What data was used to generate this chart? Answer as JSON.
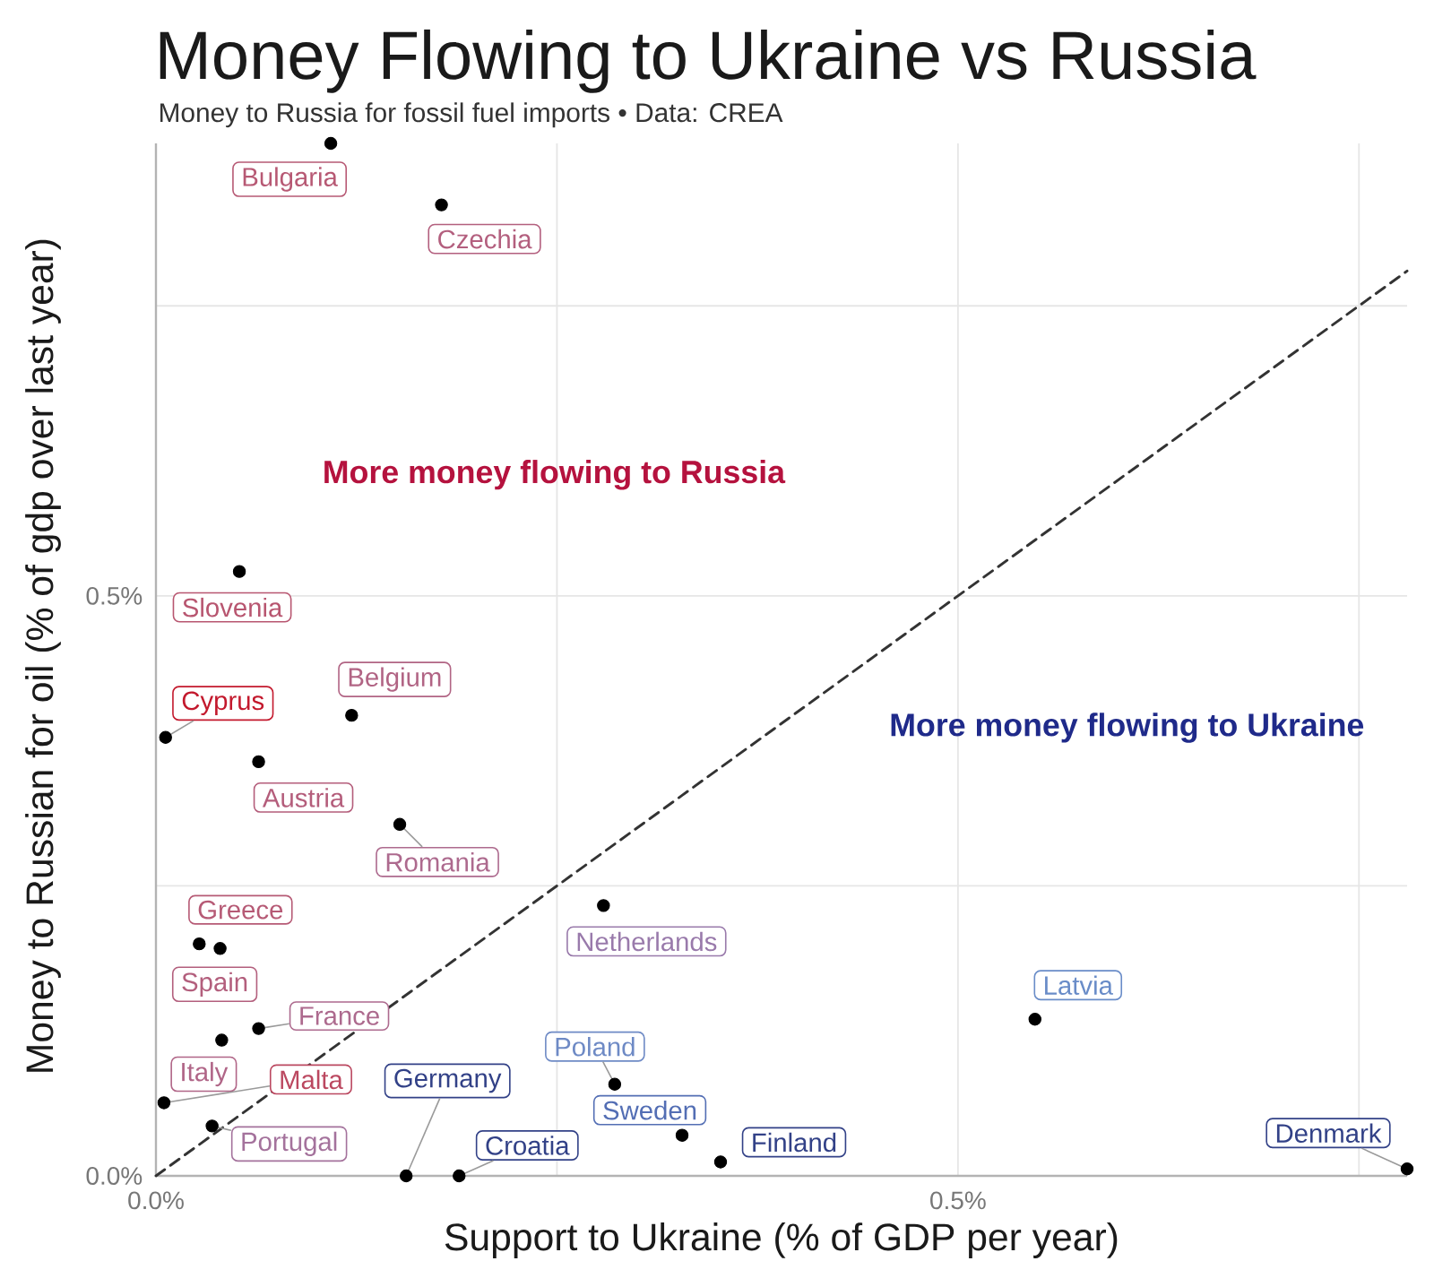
{
  "chart_data": {
    "type": "scatter",
    "title": "Money Flowing to Ukraine vs Russia",
    "subtitle": "Money to Russia for fossil fuel imports • Data: CREA",
    "xlabel": "Support to Ukraine (% of GDP per year)",
    "ylabel": "Money to Russian for oil (% of gdp over last year)",
    "xlim": [
      0,
      0.78
    ],
    "ylim": [
      0,
      0.89
    ],
    "xticks": [
      {
        "value": 0,
        "label": "0.0%"
      },
      {
        "value": 0.25,
        "label": null
      },
      {
        "value": 0.5,
        "label": "0.5%"
      },
      {
        "value": 0.75,
        "label": null
      }
    ],
    "yticks": [
      {
        "value": 0,
        "label": "0.0%"
      },
      {
        "value": 0.25,
        "label": null
      },
      {
        "value": 0.5,
        "label": "0.5%"
      },
      {
        "value": 0.75,
        "label": null
      }
    ],
    "grid": true,
    "series": [
      {
        "type": "line",
        "color": "#333333",
        "line_style": "dashed",
        "x": [
          0,
          0.78
        ],
        "values": [
          0,
          0.78
        ]
      },
      {
        "type": "scatter",
        "color": "#000000",
        "marker": "circle",
        "x": [
          0.109,
          0.178,
          0.052,
          0.006,
          0.122,
          0.064,
          0.152,
          0.027,
          0.04,
          0.064,
          0.041,
          0.005,
          0.035,
          0.156,
          0.189,
          0.279,
          0.286,
          0.328,
          0.352,
          0.548,
          0.78
        ],
        "values": [
          0.89,
          0.837,
          0.521,
          0.378,
          0.397,
          0.357,
          0.303,
          0.2,
          0.196,
          0.127,
          0.117,
          0.063,
          0.043,
          0,
          0,
          0.233,
          0.079,
          0.035,
          0.012,
          0.135,
          0.006
        ]
      }
    ],
    "annotations": [
      "More money flowing to Russia",
      "More money flowing to Ukraine",
      {
        "text": "Bulgaria",
        "x": 0.109,
        "y": 0.89
      },
      {
        "text": "Czechia",
        "x": 0.178,
        "y": 0.837
      },
      {
        "text": "Slovenia",
        "x": 0.052,
        "y": 0.521
      },
      {
        "text": "Cyprus",
        "x": 0.006,
        "y": 0.378
      },
      {
        "text": "Belgium",
        "x": 0.122,
        "y": 0.397
      },
      {
        "text": "Austria",
        "x": 0.064,
        "y": 0.357
      },
      {
        "text": "Romania",
        "x": 0.152,
        "y": 0.303
      },
      {
        "text": "Greece",
        "x": 0.027,
        "y": 0.2
      },
      {
        "text": "Spain",
        "x": 0.04,
        "y": 0.196
      },
      {
        "text": "France",
        "x": 0.064,
        "y": 0.127
      },
      {
        "text": "Italy",
        "x": 0.041,
        "y": 0.117
      },
      {
        "text": "Malta",
        "x": 0.005,
        "y": 0.063
      },
      {
        "text": "Portugal",
        "x": 0.035,
        "y": 0.043
      },
      {
        "text": "Germany",
        "x": 0.156,
        "y": 0
      },
      {
        "text": "Croatia",
        "x": 0.189,
        "y": 0
      },
      {
        "text": "Netherlands",
        "x": 0.279,
        "y": 0.233
      },
      {
        "text": "Poland",
        "x": 0.286,
        "y": 0.079
      },
      {
        "text": "Sweden",
        "x": 0.328,
        "y": 0.035
      },
      {
        "text": "Finland",
        "x": 0.352,
        "y": 0.012
      },
      {
        "text": "Latvia",
        "x": 0.548,
        "y": 0.135
      },
      {
        "text": "Denmark",
        "x": 0.78,
        "y": 0.006
      }
    ]
  }
}
